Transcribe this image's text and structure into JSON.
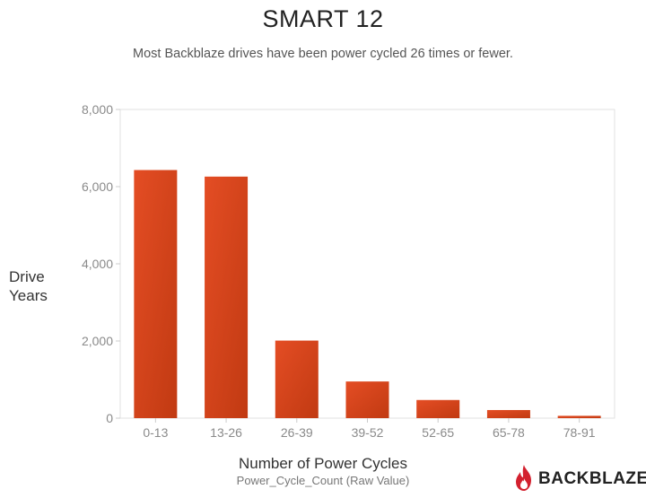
{
  "chart_data": {
    "type": "bar",
    "title": "SMART 12",
    "subtitle": "Most Backblaze drives have been power cycled 26 times or fewer.",
    "ylabel": "Drive Years",
    "xlabel": "Number of Power Cycles",
    "xsublabel": "Power_Cycle_Count (Raw Value)",
    "categories": [
      "0-13",
      "13-26",
      "26-39",
      "39-52",
      "52-65",
      "65-78",
      "78-91"
    ],
    "values": [
      6430,
      6260,
      2010,
      950,
      470,
      210,
      60
    ],
    "ylim": [
      0,
      8000
    ],
    "yticks": [
      0,
      2000,
      4000,
      6000,
      8000
    ],
    "ytick_labels": [
      "0",
      "2,000",
      "4,000",
      "6,000",
      "8,000"
    ],
    "grid": false,
    "colors": {
      "bar_top": "#e44d24",
      "bar_bottom": "#c13a12"
    }
  },
  "brand": {
    "name": "BACKBLAZE",
    "icon": "flame-icon",
    "color": "#d3202e"
  }
}
